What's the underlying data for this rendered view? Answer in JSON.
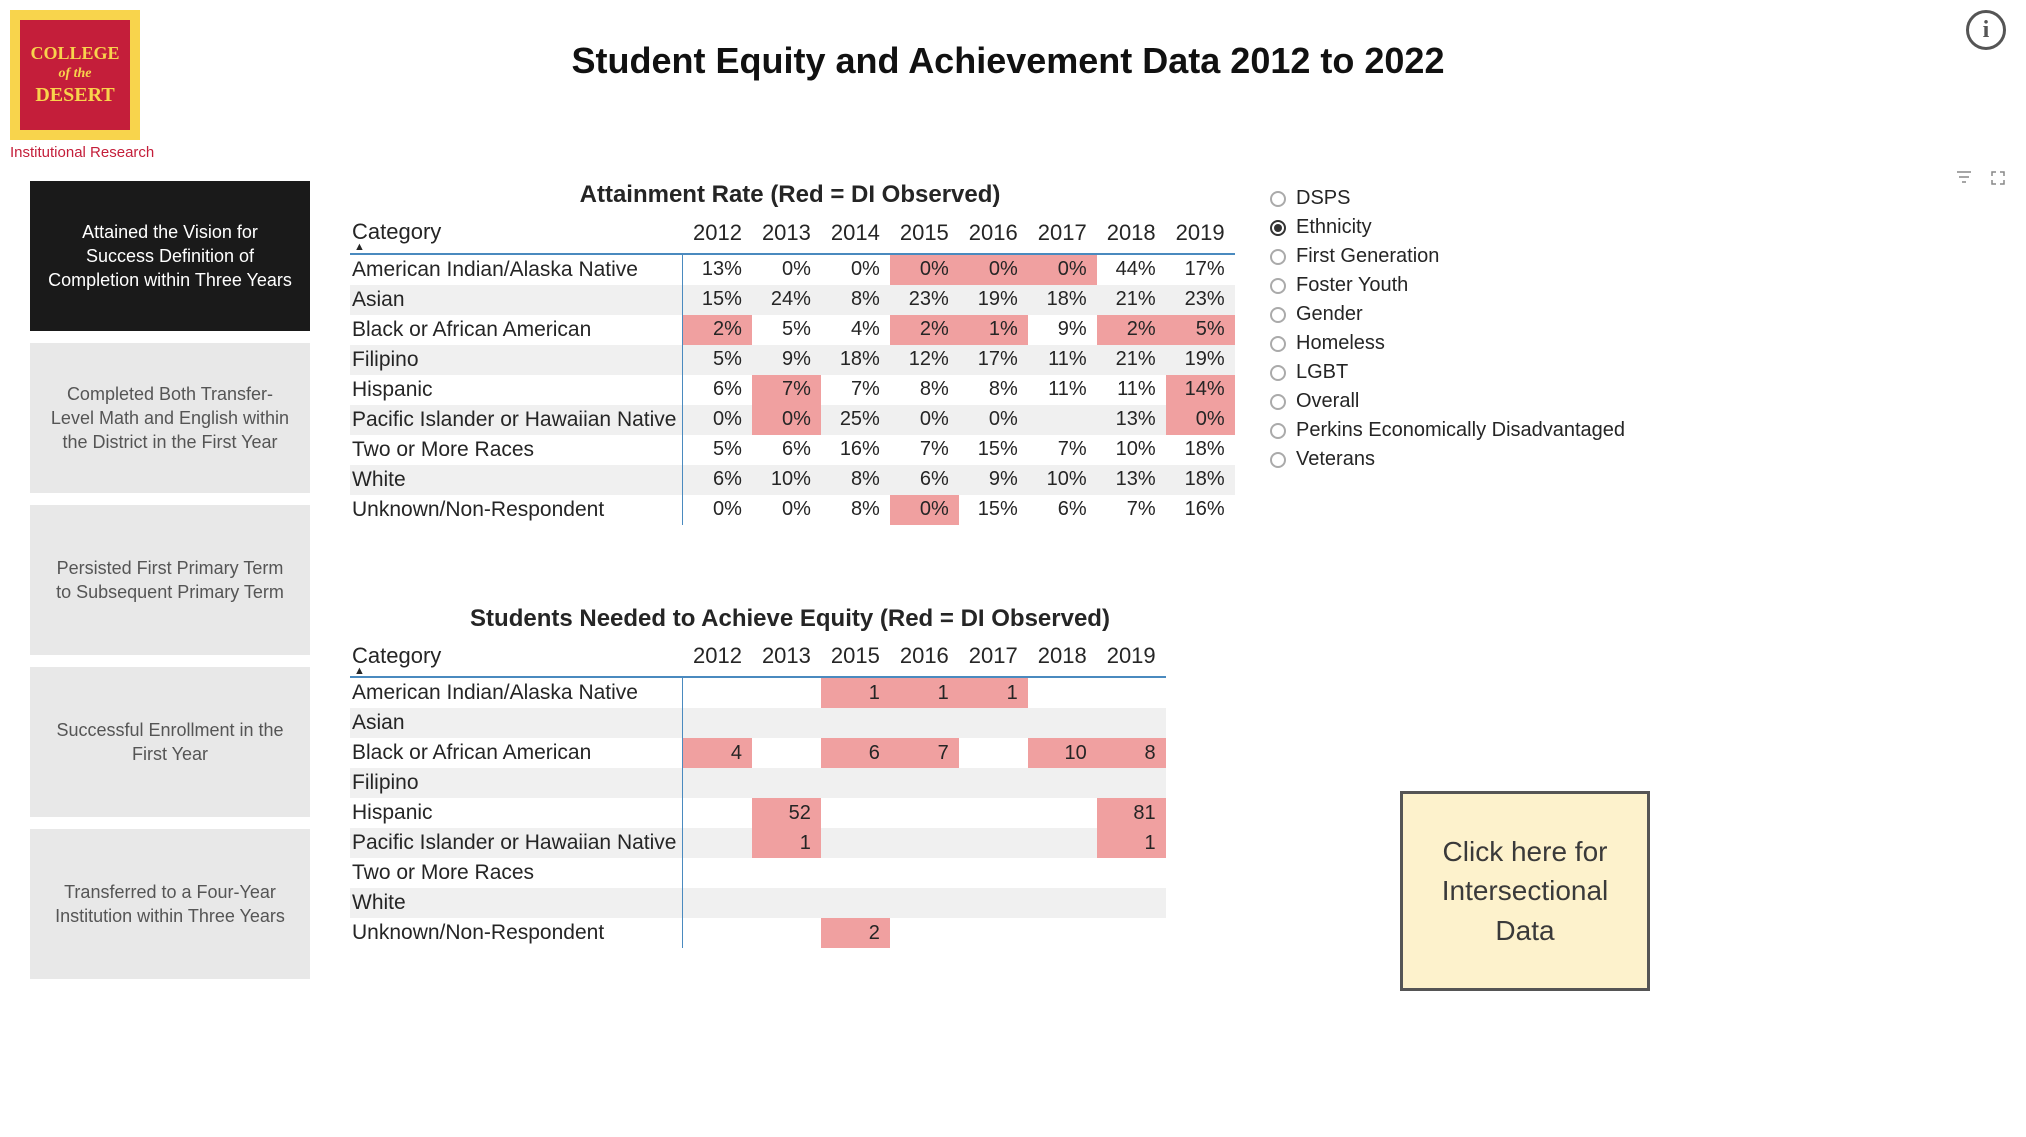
{
  "logo": {
    "line1": "COLLEGE",
    "line2": "of the",
    "line3": "DESERT",
    "subtitle": "Institutional Research"
  },
  "page_title": "Student Equity and Achievement Data 2012 to 2022",
  "colors": {
    "highlight": "#f0a0a0",
    "alt_row": "#f0f0f0",
    "header_rule": "#4a8abf",
    "cta_bg": "#fdf2cc",
    "cta_border": "#555555"
  },
  "sidebar": {
    "tabs": [
      {
        "label": "Attained the Vision for Success Definition of Completion within Three Years",
        "active": true
      },
      {
        "label": "Completed Both Transfer-Level Math and English within the District in the First Year",
        "active": false
      },
      {
        "label": "Persisted First Primary Term to Subsequent Primary Term",
        "active": false
      },
      {
        "label": "Successful Enrollment in the First Year",
        "active": false
      },
      {
        "label": "Transferred to a Four-Year Institution within Three Years",
        "active": false
      }
    ]
  },
  "filters": {
    "options": [
      {
        "label": "DSPS",
        "selected": false
      },
      {
        "label": "Ethnicity",
        "selected": true
      },
      {
        "label": "First Generation",
        "selected": false
      },
      {
        "label": "Foster Youth",
        "selected": false
      },
      {
        "label": "Gender",
        "selected": false
      },
      {
        "label": "Homeless",
        "selected": false
      },
      {
        "label": "LGBT",
        "selected": false
      },
      {
        "label": "Overall",
        "selected": false
      },
      {
        "label": "Perkins Economically Disadvantaged",
        "selected": false
      },
      {
        "label": "Veterans",
        "selected": false
      }
    ]
  },
  "cta_label": "Click here for Intersectional Data",
  "table1": {
    "title": "Attainment Rate (Red = DI Observed)",
    "category_header": "Category",
    "years": [
      "2012",
      "2013",
      "2014",
      "2015",
      "2016",
      "2017",
      "2018",
      "2019"
    ],
    "rows": [
      {
        "cat": "American Indian/Alaska Native",
        "vals": [
          "13%",
          "0%",
          "0%",
          "0%",
          "0%",
          "0%",
          "44%",
          "17%"
        ],
        "hl": [
          false,
          false,
          false,
          true,
          true,
          true,
          false,
          false
        ]
      },
      {
        "cat": "Asian",
        "vals": [
          "15%",
          "24%",
          "8%",
          "23%",
          "19%",
          "18%",
          "21%",
          "23%"
        ],
        "hl": [
          false,
          false,
          false,
          false,
          false,
          false,
          false,
          false
        ]
      },
      {
        "cat": "Black or African American",
        "vals": [
          "2%",
          "5%",
          "4%",
          "2%",
          "1%",
          "9%",
          "2%",
          "5%"
        ],
        "hl": [
          true,
          false,
          false,
          true,
          true,
          false,
          true,
          true
        ]
      },
      {
        "cat": "Filipino",
        "vals": [
          "5%",
          "9%",
          "18%",
          "12%",
          "17%",
          "11%",
          "21%",
          "19%"
        ],
        "hl": [
          false,
          false,
          false,
          false,
          false,
          false,
          false,
          false
        ]
      },
      {
        "cat": "Hispanic",
        "vals": [
          "6%",
          "7%",
          "7%",
          "8%",
          "8%",
          "11%",
          "11%",
          "14%"
        ],
        "hl": [
          false,
          true,
          false,
          false,
          false,
          false,
          false,
          true
        ]
      },
      {
        "cat": "Pacific Islander or Hawaiian Native",
        "vals": [
          "0%",
          "0%",
          "25%",
          "0%",
          "0%",
          "",
          "13%",
          "0%"
        ],
        "hl": [
          false,
          true,
          false,
          false,
          false,
          false,
          false,
          true
        ]
      },
      {
        "cat": "Two or More Races",
        "vals": [
          "5%",
          "6%",
          "16%",
          "7%",
          "15%",
          "7%",
          "10%",
          "18%"
        ],
        "hl": [
          false,
          false,
          false,
          false,
          false,
          false,
          false,
          false
        ]
      },
      {
        "cat": "White",
        "vals": [
          "6%",
          "10%",
          "8%",
          "6%",
          "9%",
          "10%",
          "13%",
          "18%"
        ],
        "hl": [
          false,
          false,
          false,
          false,
          false,
          false,
          false,
          false
        ]
      },
      {
        "cat": "Unknown/Non-Respondent",
        "vals": [
          "0%",
          "0%",
          "8%",
          "0%",
          "15%",
          "6%",
          "7%",
          "16%"
        ],
        "hl": [
          false,
          false,
          false,
          true,
          false,
          false,
          false,
          false
        ]
      }
    ]
  },
  "table2": {
    "title": "Students Needed to Achieve Equity (Red = DI Observed)",
    "category_header": "Category",
    "years": [
      "2012",
      "2013",
      "2015",
      "2016",
      "2017",
      "2018",
      "2019"
    ],
    "rows": [
      {
        "cat": "American Indian/Alaska Native",
        "vals": [
          "",
          "",
          "1",
          "1",
          "1",
          "",
          ""
        ],
        "hl": [
          false,
          false,
          true,
          true,
          true,
          false,
          false
        ]
      },
      {
        "cat": "Asian",
        "vals": [
          "",
          "",
          "",
          "",
          "",
          "",
          ""
        ],
        "hl": [
          false,
          false,
          false,
          false,
          false,
          false,
          false
        ]
      },
      {
        "cat": "Black or African American",
        "vals": [
          "4",
          "",
          "6",
          "7",
          "",
          "10",
          "8"
        ],
        "hl": [
          true,
          false,
          true,
          true,
          false,
          true,
          true
        ]
      },
      {
        "cat": "Filipino",
        "vals": [
          "",
          "",
          "",
          "",
          "",
          "",
          ""
        ],
        "hl": [
          false,
          false,
          false,
          false,
          false,
          false,
          false
        ]
      },
      {
        "cat": "Hispanic",
        "vals": [
          "",
          "52",
          "",
          "",
          "",
          "",
          "81"
        ],
        "hl": [
          false,
          true,
          false,
          false,
          false,
          false,
          true
        ]
      },
      {
        "cat": "Pacific Islander or Hawaiian Native",
        "vals": [
          "",
          "1",
          "",
          "",
          "",
          "",
          "1"
        ],
        "hl": [
          false,
          true,
          false,
          false,
          false,
          false,
          true
        ]
      },
      {
        "cat": "Two or More Races",
        "vals": [
          "",
          "",
          "",
          "",
          "",
          "",
          ""
        ],
        "hl": [
          false,
          false,
          false,
          false,
          false,
          false,
          false
        ]
      },
      {
        "cat": "White",
        "vals": [
          "",
          "",
          "",
          "",
          "",
          "",
          ""
        ],
        "hl": [
          false,
          false,
          false,
          false,
          false,
          false,
          false
        ]
      },
      {
        "cat": "Unknown/Non-Respondent",
        "vals": [
          "",
          "",
          "2",
          "",
          "",
          "",
          ""
        ],
        "hl": [
          false,
          false,
          true,
          false,
          false,
          false,
          false
        ]
      }
    ]
  }
}
